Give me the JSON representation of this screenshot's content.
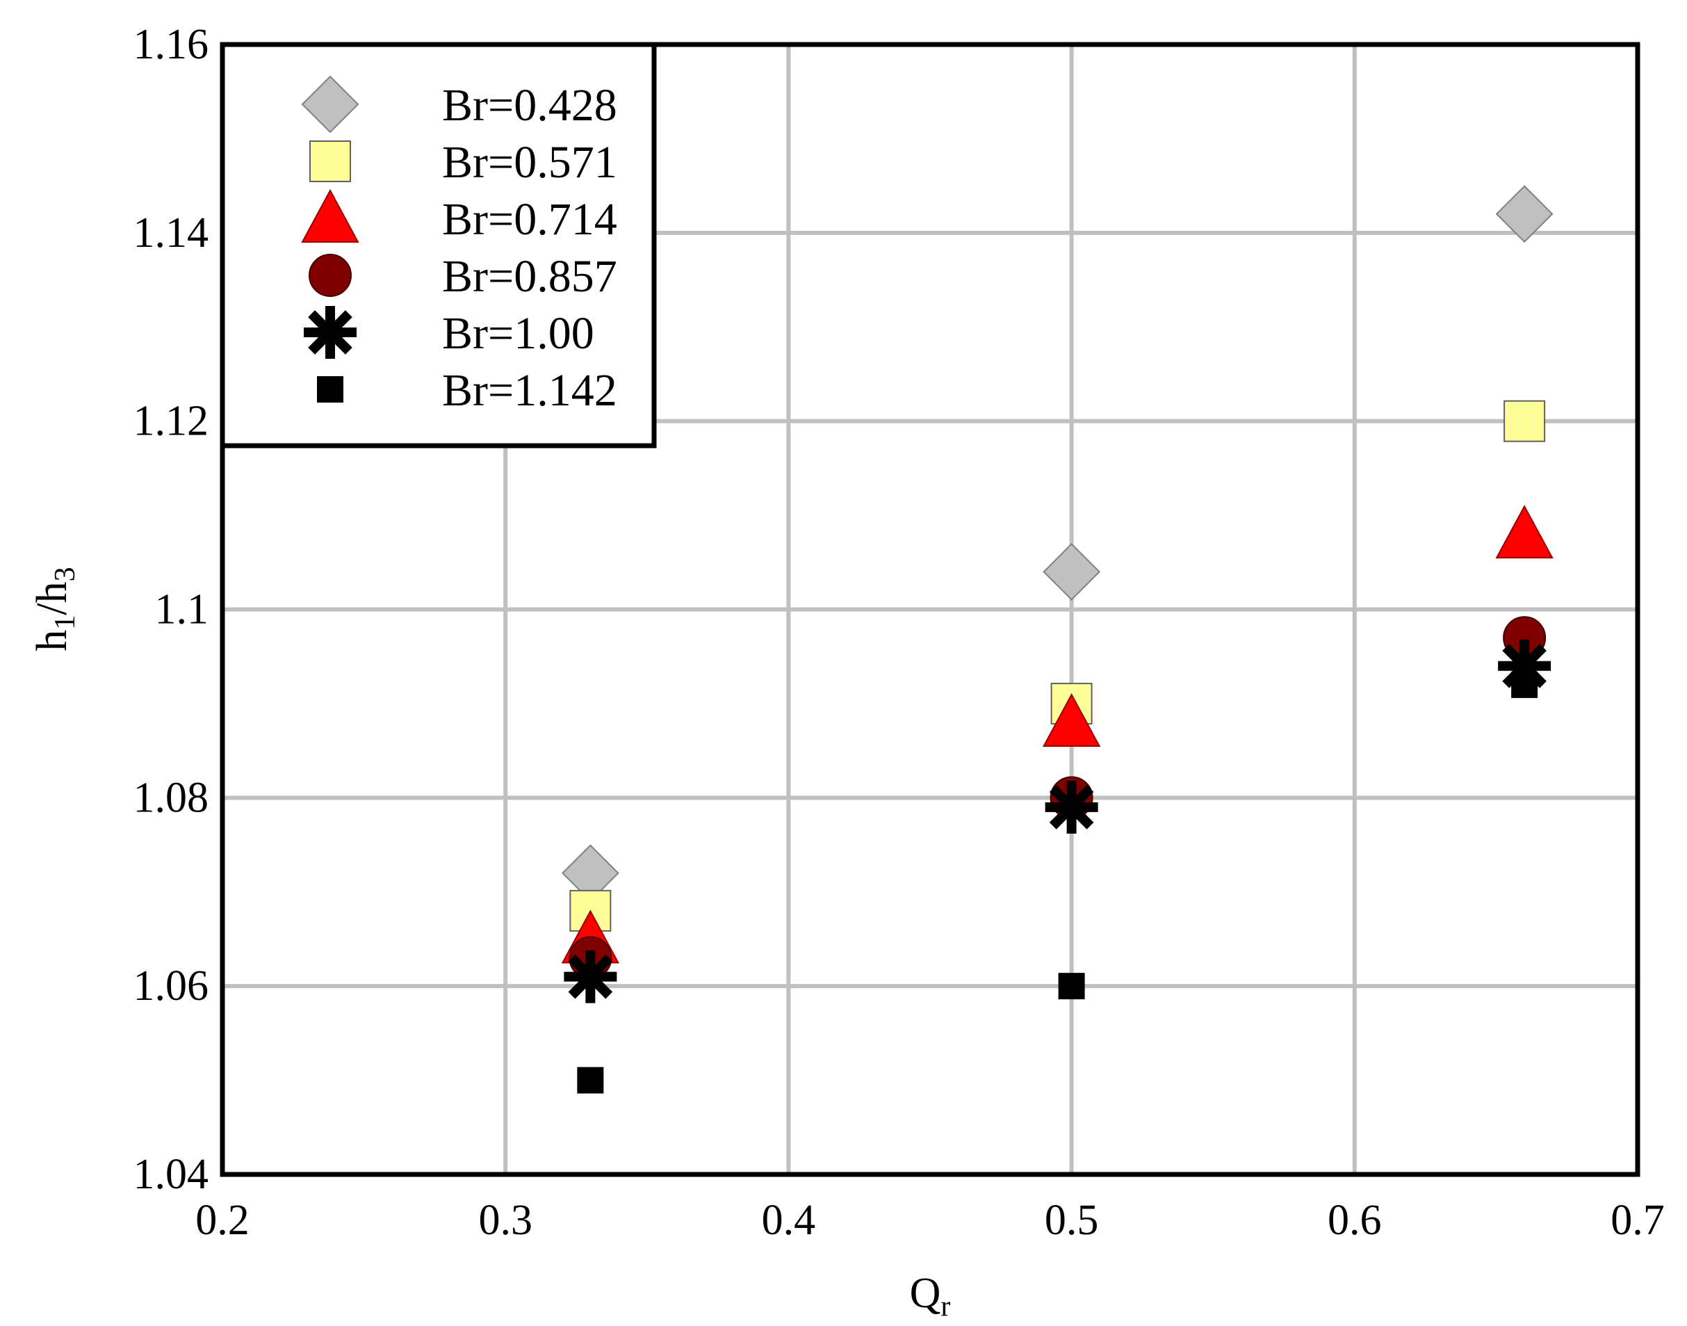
{
  "chart_data": {
    "type": "scatter",
    "title": "",
    "xlabel": "Q",
    "xlabel_sub": "r",
    "ylabel_parts": [
      "h",
      "1",
      "/h",
      "3"
    ],
    "xlim": [
      0.2,
      0.7
    ],
    "ylim": [
      1.04,
      1.16
    ],
    "x_ticks": [
      "0.2",
      "0.3",
      "0.4",
      "0.5",
      "0.6",
      "0.7"
    ],
    "x_tick_values": [
      0.2,
      0.3,
      0.4,
      0.5,
      0.6,
      0.7
    ],
    "y_ticks": [
      "1.04",
      "1.06",
      "1.08",
      "1.1",
      "1.12",
      "1.14",
      "1.16"
    ],
    "y_tick_values": [
      1.04,
      1.06,
      1.08,
      1.1,
      1.12,
      1.14,
      1.16
    ],
    "grid": true,
    "legend_position": "top-left",
    "series": [
      {
        "name": "Br=0.428",
        "marker": "diamond",
        "color": "#c0c0c0",
        "x": [
          0.33,
          0.5,
          0.66
        ],
        "y": [
          1.072,
          1.104,
          1.142
        ]
      },
      {
        "name": "Br=0.571",
        "marker": "square",
        "color": "#ffff99",
        "x": [
          0.33,
          0.5,
          0.66
        ],
        "y": [
          1.068,
          1.09,
          1.12
        ]
      },
      {
        "name": "Br=0.714",
        "marker": "triangle",
        "color": "#ff0000",
        "x": [
          0.33,
          0.5,
          0.66
        ],
        "y": [
          1.065,
          1.088,
          1.108
        ]
      },
      {
        "name": "Br=0.857",
        "marker": "circle",
        "color": "#800000",
        "x": [
          0.33,
          0.5,
          0.66
        ],
        "y": [
          1.063,
          1.08,
          1.097
        ]
      },
      {
        "name": "Br=1.00",
        "marker": "asterisk",
        "color": "#000000",
        "x": [
          0.33,
          0.5,
          0.66
        ],
        "y": [
          1.061,
          1.079,
          1.094
        ]
      },
      {
        "name": "Br=1.142",
        "marker": "small-square",
        "color": "#000000",
        "x": [
          0.33,
          0.5,
          0.66
        ],
        "y": [
          1.05,
          1.06,
          1.092
        ]
      }
    ]
  }
}
